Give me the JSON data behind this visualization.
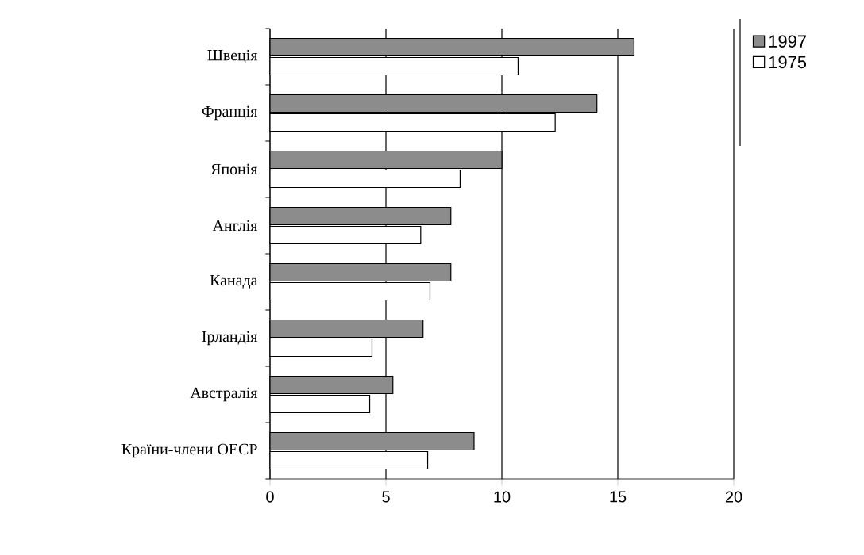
{
  "chart_data": {
    "type": "bar",
    "orientation": "horizontal",
    "categories": [
      "Швеція",
      "Франція",
      "Японія",
      "Англія",
      "Канада",
      "Ірландія",
      "Австралія",
      "Країни-члени ОЕСР"
    ],
    "series": [
      {
        "name": "1997",
        "color": "#8c8c8c",
        "values": [
          15.7,
          14.1,
          10.0,
          7.8,
          7.8,
          6.6,
          5.3,
          8.8
        ]
      },
      {
        "name": "1975",
        "color": "#ffffff",
        "values": [
          10.7,
          12.3,
          8.2,
          6.5,
          6.9,
          4.4,
          4.3,
          6.8
        ]
      }
    ],
    "xlim": [
      0,
      20
    ],
    "xticks": [
      0,
      5,
      10,
      15,
      20
    ],
    "grid": "x",
    "legend": "top right"
  }
}
